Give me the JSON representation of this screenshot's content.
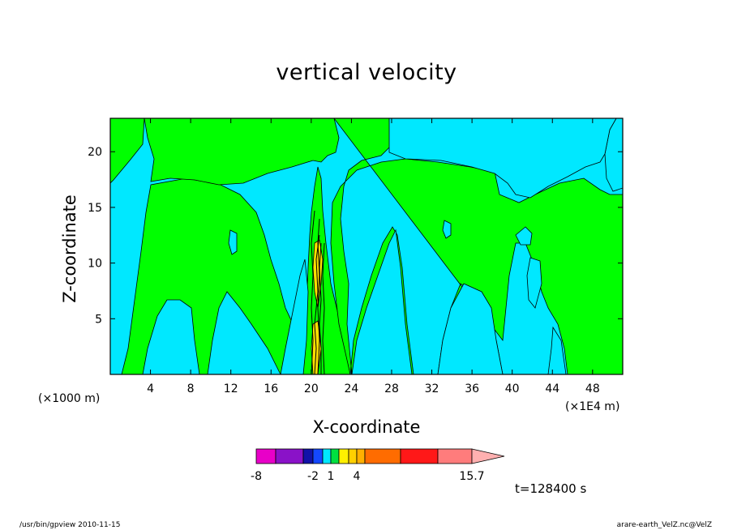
{
  "chart_data": {
    "type": "heatmap",
    "title": "vertical velocity",
    "xlabel": "X-coordinate",
    "ylabel": "Z-coordinate",
    "x_unit_left": "(×1000 m)",
    "x_unit_right": "(×1E4 m)",
    "x_ticks": [
      4,
      8,
      12,
      16,
      20,
      24,
      28,
      32,
      36,
      40,
      44,
      48
    ],
    "y_ticks": [
      5,
      10,
      15,
      20
    ],
    "xlim": [
      0,
      51
    ],
    "ylim": [
      0,
      23
    ],
    "colorbar": {
      "labels": [
        "-8",
        "-2",
        "1",
        "4",
        "15.7"
      ],
      "colors": [
        "#e800c8",
        "#8a12c8",
        "#1212a8",
        "#1448ff",
        "#00e8ff",
        "#00e040",
        "#fff000",
        "#ffd000",
        "#ffb000",
        "#ff6c00",
        "#ff1818",
        "#ff7c7c",
        "#ffb0b0"
      ]
    },
    "fill_colors": {
      "background": "#00e8ff",
      "positive": "#00ff00",
      "strong": "#ffe000"
    },
    "grid": false
  },
  "annotations": {
    "time": "t=128400 s",
    "footer_left": "/usr/bin/gpview   2010-11-15",
    "footer_right": "arare-earth_VelZ.nc@VelZ"
  }
}
